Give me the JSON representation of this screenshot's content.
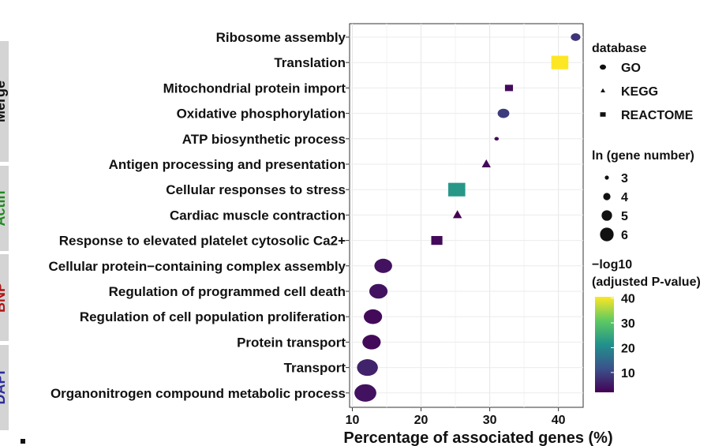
{
  "chart_data": {
    "type": "scatter",
    "xlabel": "Percentage of associated genes (%)",
    "xlim": [
      9.6,
      43.6
    ],
    "xticks": [
      10,
      20,
      30,
      40
    ],
    "terms": [
      {
        "label": "Ribosome assembly",
        "x": 42.5,
        "database": "GO",
        "ln_gene_number": 3.6,
        "neg_log10_p": 8
      },
      {
        "label": "Translation",
        "x": 40.2,
        "database": "REACTOME",
        "ln_gene_number": 5.5,
        "neg_log10_p": 40
      },
      {
        "label": "Mitochondrial protein import",
        "x": 32.8,
        "database": "REACTOME",
        "ln_gene_number": 3.5,
        "neg_log10_p": 3
      },
      {
        "label": "Oxidative phosphorylation",
        "x": 32.0,
        "database": "GO",
        "ln_gene_number": 4.0,
        "neg_log10_p": 9
      },
      {
        "label": "ATP biosynthetic process",
        "x": 31.0,
        "database": "GO",
        "ln_gene_number": 2.6,
        "neg_log10_p": 3
      },
      {
        "label": "Antigen processing and presentation",
        "x": 29.5,
        "database": "KEGG",
        "ln_gene_number": 4.1,
        "neg_log10_p": 3
      },
      {
        "label": "Cellular responses to stress",
        "x": 25.2,
        "database": "REACTOME",
        "ln_gene_number": 5.5,
        "neg_log10_p": 22
      },
      {
        "label": "Cardiac muscle contraction",
        "x": 25.3,
        "database": "KEGG",
        "ln_gene_number": 4.1,
        "neg_log10_p": 2
      },
      {
        "label": "Response to elevated platelet cytosolic Ca2+",
        "x": 22.3,
        "database": "REACTOME",
        "ln_gene_number": 4.2,
        "neg_log10_p": 3
      },
      {
        "label": "Cellular protein−containing complex assembly",
        "x": 14.5,
        "database": "GO",
        "ln_gene_number": 5.2,
        "neg_log10_p": 4
      },
      {
        "label": "Regulation of programmed cell death",
        "x": 13.8,
        "database": "GO",
        "ln_gene_number": 5.3,
        "neg_log10_p": 4
      },
      {
        "label": "Regulation of cell population proliferation",
        "x": 13.0,
        "database": "GO",
        "ln_gene_number": 5.3,
        "neg_log10_p": 3
      },
      {
        "label": "Protein transport",
        "x": 12.8,
        "database": "GO",
        "ln_gene_number": 5.3,
        "neg_log10_p": 3
      },
      {
        "label": "Transport",
        "x": 12.2,
        "database": "GO",
        "ln_gene_number": 5.8,
        "neg_log10_p": 6
      },
      {
        "label": "Organonitrogen compound metabolic process",
        "x": 11.9,
        "database": "GO",
        "ln_gene_number": 6.0,
        "neg_log10_p": 4
      }
    ],
    "legend_database": {
      "title": "database",
      "items": [
        "GO",
        "KEGG",
        "REACTOME"
      ]
    },
    "legend_size": {
      "title": "ln (gene number)",
      "items": [
        3,
        4,
        5,
        6
      ]
    },
    "legend_color": {
      "title_line1": "−log10",
      "title_line2": "(adjusted P-value)",
      "ticks": [
        40,
        30,
        20,
        10
      ],
      "range": [
        2,
        40
      ]
    }
  },
  "side_labels": [
    {
      "text": "Merge",
      "color": "#111111"
    },
    {
      "text": "Actin",
      "color": "#1f8a1f"
    },
    {
      "text": "BNP",
      "color": "#b01515"
    },
    {
      "text": "DAPI",
      "color": "#2b2b9e"
    }
  ]
}
